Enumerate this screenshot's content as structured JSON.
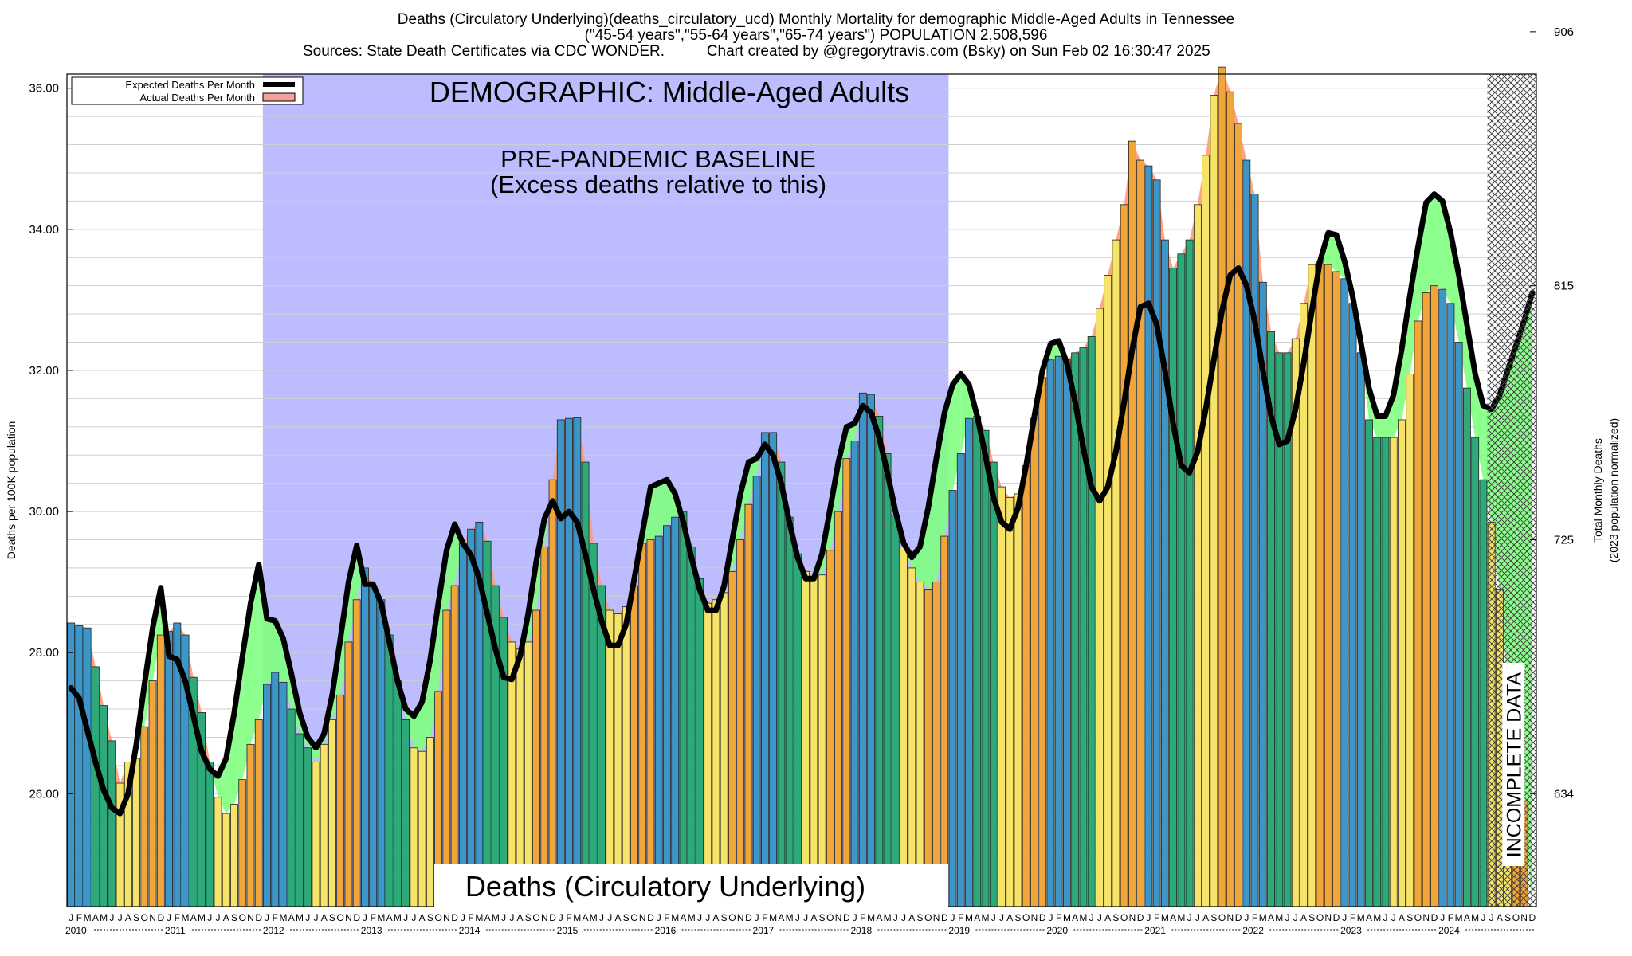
{
  "header": {
    "title_line1": "Deaths (Circulatory Underlying)(deaths_circulatory_ucd) Monthly Mortality for demographic Middle-Aged Adults in Tennessee",
    "title_line2": "(\"45-54 years\",\"55-64 years\",\"65-74 years\") POPULATION 2,508,596",
    "sources": "Sources: State Death Certificates via CDC WONDER.",
    "credit": "Chart created by @gregorytravis.com (Bsky) on Sun Feb 02 16:30:47 2025"
  },
  "chart_data": {
    "type": "bar",
    "ylabel": "Deaths per 100K population",
    "y2label_line1": "Total Monthly Deaths",
    "y2label_line2": "(2023 population normalized)",
    "ylim": [
      24.4,
      36.2
    ],
    "yticks": [
      "26.00",
      "28.00",
      "30.00",
      "32.00",
      "34.00",
      "36.00"
    ],
    "y2ticks": [
      {
        "value": 26.0,
        "label": "634"
      },
      {
        "value": 29.6,
        "label": "725"
      },
      {
        "value": 33.2,
        "label": "815"
      },
      {
        "value": 36.8,
        "label": "906"
      }
    ],
    "start_year": 2010,
    "years": [
      "2010",
      "2011",
      "2012",
      "2013",
      "2014",
      "2015",
      "2016",
      "2017",
      "2018",
      "2019",
      "2020",
      "2021",
      "2022",
      "2023",
      "2024"
    ],
    "month_letters": [
      "J",
      "F",
      "M",
      "A",
      "M",
      "J",
      "J",
      "A",
      "S",
      "O",
      "N",
      "D"
    ],
    "legend": [
      {
        "label": "Expected Deaths Per Month",
        "color": "#000000"
      },
      {
        "label": "Actual Deaths Per Month",
        "color": "#f4a09a"
      }
    ],
    "annotations": {
      "demographic": "DEMOGRAPHIC: Middle-Aged Adults",
      "baseline_line1": "PRE-PANDEMIC BASELINE",
      "baseline_line2": "(Excess deaths relative to this)",
      "measure": "Deaths (Circulatory Underlying)",
      "incomplete": "INCOMPLETE DATA"
    },
    "baseline_period": {
      "start_month": 24,
      "end_month": 107
    },
    "incomplete_from_month": 174,
    "colors": {
      "baseline_fill": "#bcbcff",
      "excess_fill": "#ff9a78",
      "deficit_fill": "#80ff80",
      "winter_bar": "#3c96c8",
      "spring_bar": "#2eaa7a",
      "summer_bar": "#f6e46a",
      "fall_bar": "#f0a638",
      "hatch": "#444444"
    },
    "actual": [
      28.42,
      28.38,
      28.35,
      27.8,
      27.25,
      26.75,
      26.15,
      26.45,
      26.5,
      26.95,
      27.6,
      28.25,
      28.3,
      28.42,
      28.25,
      27.65,
      27.15,
      26.45,
      25.95,
      25.72,
      25.85,
      26.2,
      26.7,
      27.05,
      27.55,
      27.72,
      27.58,
      27.2,
      26.85,
      26.65,
      26.45,
      26.7,
      27.05,
      27.4,
      28.15,
      28.75,
      29.2,
      28.95,
      28.75,
      28.25,
      27.6,
      27.05,
      26.65,
      26.6,
      26.8,
      27.45,
      28.6,
      28.95,
      29.55,
      29.75,
      29.85,
      29.58,
      28.95,
      28.5,
      28.15,
      28.05,
      28.15,
      28.6,
      29.5,
      30.45,
      31.3,
      31.32,
      31.33,
      30.7,
      29.55,
      28.95,
      28.6,
      28.55,
      28.65,
      28.95,
      29.55,
      29.6,
      29.65,
      29.8,
      29.92,
      30.0,
      29.5,
      29.05,
      28.7,
      28.75,
      28.85,
      29.15,
      29.6,
      30.1,
      30.5,
      31.12,
      31.12,
      30.7,
      29.92,
      29.4,
      29.15,
      29.05,
      29.1,
      29.45,
      30.0,
      30.75,
      31.0,
      31.68,
      31.66,
      31.35,
      30.82,
      29.95,
      29.5,
      29.2,
      29.0,
      28.9,
      29.0,
      29.65,
      30.3,
      30.82,
      31.32,
      31.35,
      31.15,
      30.7,
      30.35,
      30.2,
      30.25,
      30.65,
      31.32,
      31.9,
      32.15,
      32.2,
      32.15,
      32.25,
      32.32,
      32.48,
      32.88,
      33.35,
      33.85,
      34.35,
      35.25,
      34.98,
      34.9,
      34.7,
      33.85,
      33.45,
      33.65,
      33.85,
      34.35,
      35.05,
      35.9,
      36.3,
      35.95,
      35.5,
      34.98,
      34.5,
      33.25,
      32.55,
      32.25,
      32.25,
      32.45,
      32.95,
      33.5,
      33.55,
      33.5,
      33.4,
      33.3,
      32.95,
      32.25,
      31.3,
      31.05,
      31.05,
      31.05,
      31.3,
      31.95,
      32.7,
      33.1,
      33.2,
      33.15,
      32.95,
      32.4,
      31.75,
      31.05,
      30.45,
      29.85,
      28.9,
      27.6,
      26.85,
      25.9,
      24.3
    ],
    "expected": [
      27.5,
      27.35,
      26.9,
      26.45,
      26.05,
      25.8,
      25.72,
      26.0,
      26.7,
      27.55,
      28.35,
      28.92,
      27.95,
      27.9,
      27.6,
      27.1,
      26.6,
      26.35,
      26.25,
      26.5,
      27.15,
      27.95,
      28.7,
      29.25,
      28.48,
      28.45,
      28.2,
      27.7,
      27.15,
      26.8,
      26.65,
      26.85,
      27.4,
      28.2,
      29.0,
      29.52,
      28.97,
      28.97,
      28.7,
      28.15,
      27.6,
      27.2,
      27.1,
      27.3,
      27.9,
      28.7,
      29.45,
      29.82,
      29.55,
      29.38,
      29.05,
      28.55,
      28.05,
      27.65,
      27.62,
      27.95,
      28.55,
      29.3,
      29.9,
      30.15,
      29.9,
      30.0,
      29.85,
      29.4,
      28.9,
      28.45,
      28.1,
      28.1,
      28.4,
      29.05,
      29.7,
      30.35,
      30.4,
      30.45,
      30.25,
      29.85,
      29.35,
      28.9,
      28.6,
      28.6,
      28.95,
      29.6,
      30.25,
      30.7,
      30.75,
      30.95,
      30.8,
      30.4,
      29.85,
      29.35,
      29.05,
      29.05,
      29.4,
      30.05,
      30.7,
      31.2,
      31.25,
      31.5,
      31.4,
      31.05,
      30.55,
      30.0,
      29.55,
      29.35,
      29.5,
      30.05,
      30.75,
      31.4,
      31.8,
      31.95,
      31.8,
      31.35,
      30.8,
      30.2,
      29.85,
      29.75,
      30.05,
      30.65,
      31.35,
      32.0,
      32.38,
      32.42,
      32.1,
      31.55,
      30.9,
      30.35,
      30.15,
      30.35,
      30.85,
      31.55,
      32.3,
      32.9,
      32.95,
      32.65,
      32.0,
      31.25,
      30.65,
      30.55,
      30.85,
      31.45,
      32.15,
      32.85,
      33.35,
      33.45,
      33.2,
      32.7,
      32.0,
      31.35,
      30.95,
      31.0,
      31.45,
      32.1,
      32.85,
      33.55,
      33.95,
      33.92,
      33.55,
      33.05,
      32.4,
      31.75,
      31.35,
      31.35,
      31.65,
      32.3,
      33.05,
      33.75,
      34.38,
      34.5,
      34.4,
      33.95,
      33.35,
      32.65,
      31.95,
      31.5,
      31.45,
      31.65,
      32.0,
      32.35,
      32.7,
      33.1
    ]
  }
}
